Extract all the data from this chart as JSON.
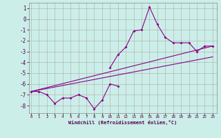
{
  "xlabel": "Windchill (Refroidissement éolien,°C)",
  "background_color": "#cceee8",
  "grid_color": "#aaaaaa",
  "line_color": "#880088",
  "x_ticks": [
    0,
    1,
    2,
    3,
    4,
    5,
    6,
    7,
    8,
    9,
    10,
    11,
    12,
    13,
    14,
    15,
    16,
    17,
    18,
    19,
    20,
    21,
    22,
    23
  ],
  "y_ticks": [
    1,
    0,
    -1,
    -2,
    -3,
    -4,
    -5,
    -6,
    -7,
    -8
  ],
  "ylim": [
    -8.7,
    1.5
  ],
  "xlim": [
    -0.3,
    23.5
  ],
  "s1_x": [
    0,
    1,
    2,
    3,
    4,
    5,
    6,
    7,
    8,
    9,
    10,
    11
  ],
  "s1_y": [
    -6.7,
    -6.7,
    -7.0,
    -7.8,
    -7.3,
    -7.3,
    -7.0,
    -7.3,
    -8.3,
    -7.5,
    -6.0,
    -6.2
  ],
  "s2_x": [
    10,
    11,
    12,
    13,
    14,
    15,
    16,
    17,
    18,
    19,
    20,
    21,
    22,
    23
  ],
  "s2_y": [
    -4.5,
    -3.3,
    -2.6,
    -1.1,
    -1.0,
    1.1,
    -0.5,
    -1.7,
    -2.2,
    -2.2,
    -2.2,
    -3.0,
    -2.5,
    -2.5
  ],
  "trend1_x": [
    0,
    23
  ],
  "trend1_y": [
    -6.7,
    -2.5
  ],
  "trend2_x": [
    0,
    23
  ],
  "trend2_y": [
    -6.7,
    -3.5
  ]
}
